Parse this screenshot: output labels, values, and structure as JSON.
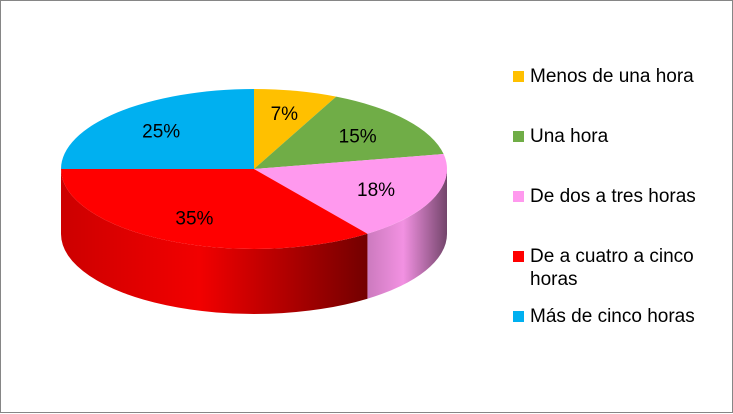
{
  "chart_data": {
    "type": "pie",
    "title": "",
    "categories": [
      "Menos de una hora",
      "Una hora",
      "De dos a tres horas",
      "De a  cuatro a cinco horas",
      "Más de cinco horas"
    ],
    "values": [
      7,
      15,
      18,
      35,
      25
    ],
    "labels": [
      "7%",
      "15%",
      "18%",
      "35%",
      "25%"
    ],
    "colors": [
      "#FFC000",
      "#70AD47",
      "#FF99EE",
      "#FF0000",
      "#00B0F0"
    ],
    "legend_position": "right",
    "style": "3d"
  }
}
